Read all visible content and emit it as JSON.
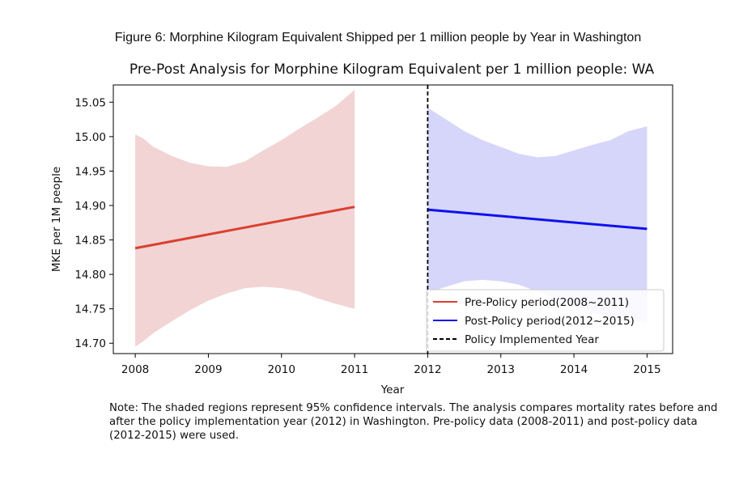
{
  "figure_caption": "Figure 6:  Morphine Kilogram Equivalent Shipped per 1 million people by Year in Washington",
  "note": "Note: The shaded regions represent 95% confidence intervals. The analysis compares mortality rates before and after the policy implementation year (2012) in Washington. Pre-policy data (2008-2011) and post-policy data (2012-2015) were used.",
  "chart_data": {
    "type": "line",
    "title": "Pre-Post Analysis for Morphine Kilogram Equivalent per 1 million people: WA",
    "xlabel": "Year",
    "ylabel": "MKE per 1M people",
    "xlim": [
      2007.7,
      2015.35
    ],
    "ylim": [
      14.685,
      15.075
    ],
    "xticks": [
      2008,
      2009,
      2010,
      2011,
      2012,
      2013,
      2014,
      2015
    ],
    "yticks": [
      "14.70",
      "14.75",
      "14.80",
      "14.85",
      "14.90",
      "14.95",
      "15.00",
      "15.05"
    ],
    "grid": false,
    "legend_position": "lower-right",
    "series": [
      {
        "name": "Pre-Policy period(2008~2011)",
        "color": "#d9402f",
        "band_color": "#f2d4d4",
        "x": [
          2008,
          2011
        ],
        "y": [
          14.838,
          14.898
        ],
        "ci_x": [
          2008,
          2008.1,
          2008.25,
          2008.5,
          2008.75,
          2009,
          2009.25,
          2009.5,
          2009.75,
          2010,
          2010.25,
          2010.5,
          2010.75,
          2011
        ],
        "ci_upper": [
          15.003,
          14.998,
          14.985,
          14.972,
          14.962,
          14.957,
          14.956,
          14.964,
          14.98,
          14.995,
          15.012,
          15.028,
          15.045,
          15.068
        ],
        "ci_lower": [
          14.695,
          14.702,
          14.715,
          14.732,
          14.748,
          14.762,
          14.772,
          14.78,
          14.782,
          14.78,
          14.775,
          14.765,
          14.757,
          14.75
        ]
      },
      {
        "name": "Post-Policy period(2012~2015)",
        "color": "#1010ee",
        "band_color": "#d6d6fa",
        "x": [
          2012,
          2015
        ],
        "y": [
          14.894,
          14.866
        ],
        "ci_x": [
          2012,
          2012.25,
          2012.5,
          2012.75,
          2013,
          2013.25,
          2013.5,
          2013.75,
          2014,
          2014.25,
          2014.5,
          2014.75,
          2015
        ],
        "ci_upper": [
          15.042,
          15.025,
          15.008,
          14.995,
          14.985,
          14.975,
          14.97,
          14.972,
          14.98,
          14.988,
          14.995,
          15.008,
          15.015
        ],
        "ci_lower": [
          14.773,
          14.782,
          14.79,
          14.792,
          14.79,
          14.785,
          14.775,
          14.765,
          14.755,
          14.745,
          14.738,
          14.733,
          14.73
        ]
      }
    ],
    "vline": {
      "x": 2012,
      "name": "Policy Implemented Year",
      "color": "#000000"
    }
  }
}
